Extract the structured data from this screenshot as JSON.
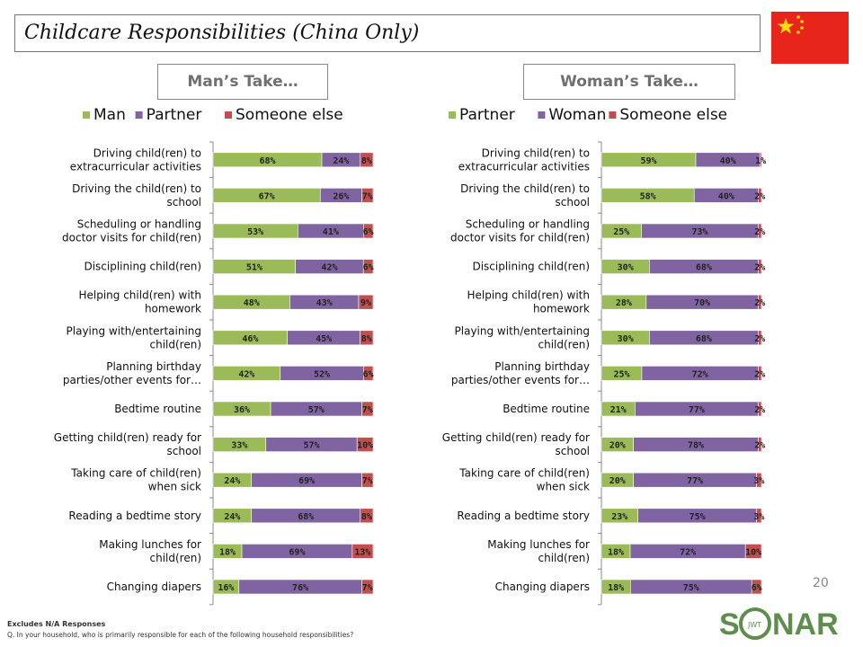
{
  "page": {
    "title": "Childcare Responsibilities (China Only)",
    "left_header": "Man’s Take…",
    "right_header": "Woman’s Take…",
    "page_number": "20",
    "footnote_1": "Excludes N/A Responses",
    "footnote_2": "Q. In your household, who is primarily responsible for each of the following household responsibilities?",
    "logo_text": "SONAR",
    "logo_sub": "JWT"
  },
  "colors": {
    "green": "#9BBB59",
    "purple": "#8064A2",
    "red": "#C0504D",
    "flag_red": "#E8251B",
    "flag_star": "#FFDE00",
    "logo_green": "#5E8D4E"
  },
  "chart_data": [
    {
      "type": "bar",
      "orientation": "horizontal",
      "stacked": true,
      "categories": [
        "Driving child(ren) to extracurricular activities",
        "Driving the child(ren) to school",
        "Scheduling or handling doctor visits for child(ren)",
        "Disciplining child(ren)",
        "Helping child(ren) with homework",
        "Playing with/entertaining child(ren)",
        "Planning birthday parties/other events for…",
        "Bedtime routine",
        "Getting child(ren) ready for school",
        "Taking care of child(ren) when sick",
        "Reading a bedtime story",
        "Making lunches for child(ren)",
        "Changing diapers"
      ],
      "series": [
        {
          "name": "Man",
          "color": "#9BBB59",
          "values": [
            68,
            67,
            53,
            51,
            48,
            46,
            42,
            36,
            33,
            24,
            24,
            18,
            16
          ]
        },
        {
          "name": "Partner",
          "color": "#8064A2",
          "values": [
            24,
            26,
            41,
            42,
            43,
            45,
            52,
            57,
            57,
            69,
            68,
            69,
            76
          ]
        },
        {
          "name": "Someone else",
          "color": "#C0504D",
          "values": [
            8,
            7,
            6,
            6,
            9,
            8,
            6,
            7,
            10,
            7,
            8,
            13,
            7
          ]
        }
      ],
      "value_suffix": "%",
      "legend_position": "top"
    },
    {
      "type": "bar",
      "orientation": "horizontal",
      "stacked": true,
      "categories": [
        "Driving child(ren) to extracurricular activities",
        "Driving the child(ren) to school",
        "Scheduling or handling doctor visits for child(ren)",
        "Disciplining child(ren)",
        "Helping child(ren) with homework",
        "Playing with/entertaining child(ren)",
        "Planning birthday parties/other events for…",
        "Bedtime routine",
        "Getting child(ren) ready for school",
        "Taking care of child(ren) when sick",
        "Reading a bedtime story",
        "Making lunches for child(ren)",
        "Changing diapers"
      ],
      "series": [
        {
          "name": "Partner",
          "color": "#9BBB59",
          "values": [
            59,
            58,
            25,
            30,
            28,
            30,
            25,
            21,
            20,
            20,
            23,
            18,
            18
          ]
        },
        {
          "name": "Woman",
          "color": "#8064A2",
          "values": [
            40,
            40,
            73,
            68,
            70,
            68,
            72,
            77,
            78,
            77,
            75,
            72,
            75
          ]
        },
        {
          "name": "Someone else",
          "color": "#C0504D",
          "values": [
            1,
            2,
            2,
            2,
            2,
            2,
            2,
            2,
            2,
            3,
            3,
            10,
            6
          ]
        }
      ],
      "value_suffix": "%",
      "legend_position": "top"
    }
  ]
}
